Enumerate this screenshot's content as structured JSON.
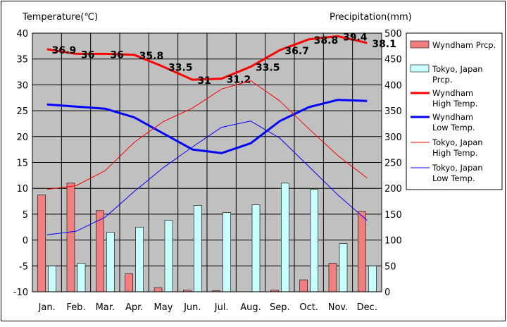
{
  "chart_data": {
    "type": "bar",
    "left_axis_title": "Temperature(℃)",
    "right_axis_title": "Precipitation(mm)",
    "categories": [
      "Jan.",
      "Feb.",
      "Mar.",
      "Apr.",
      "May",
      "Jun.",
      "Jul.",
      "Aug.",
      "Sep.",
      "Oct.",
      "Nov.",
      "Dec."
    ],
    "temperature_axis": {
      "min": -10,
      "max": 40,
      "ticks": [
        "40",
        "35",
        "30",
        "25",
        "20",
        "15",
        "10",
        "5",
        "0",
        "-5",
        "-10"
      ]
    },
    "precipitation_axis": {
      "min": 0,
      "max": 500,
      "ticks": [
        "500",
        "450",
        "400",
        "350",
        "300",
        "250",
        "200",
        "150",
        "100",
        "50",
        "0"
      ]
    },
    "grid": true,
    "plot_background": "#c0c0c0",
    "legend_position": "right",
    "series": [
      {
        "name": "Wyndham Prcp.",
        "kind": "bar",
        "axis": "precipitation",
        "color": "#f08080",
        "values": [
          187,
          210,
          157,
          35,
          8,
          3,
          2,
          0,
          3,
          23,
          55,
          155
        ]
      },
      {
        "name": "Tokyo, Japan Prcp.",
        "kind": "bar",
        "axis": "precipitation",
        "color": "#c8ffff",
        "values": [
          50,
          55,
          115,
          125,
          138,
          167,
          153,
          168,
          210,
          198,
          93,
          50
        ]
      },
      {
        "name": "Wyndham High Temp.",
        "kind": "line",
        "axis": "temperature",
        "color": "#ff0000",
        "width": 3,
        "values": [
          36.9,
          36.0,
          36.0,
          35.8,
          33.5,
          31.0,
          31.2,
          33.5,
          36.7,
          38.8,
          39.4,
          38.1
        ],
        "labels": [
          "36.9",
          "36",
          "36",
          "35.8",
          "33.5",
          "31",
          "31.2",
          "33.5",
          "36.7",
          "38.8",
          "39.4",
          "38.1"
        ]
      },
      {
        "name": "Wyndham Low Temp.",
        "kind": "line",
        "axis": "temperature",
        "color": "#0000ff",
        "width": 3,
        "values": [
          26.2,
          25.8,
          25.4,
          23.7,
          20.6,
          17.5,
          16.8,
          18.7,
          23.0,
          25.7,
          27.1,
          26.9
        ]
      },
      {
        "name": "Tokyo, Japan High Temp.",
        "kind": "line",
        "axis": "temperature",
        "color": "#ff0000",
        "width": 1,
        "values": [
          9.8,
          10.5,
          13.4,
          18.9,
          22.9,
          25.5,
          29.2,
          30.8,
          26.9,
          21.5,
          16.3,
          12.0
        ]
      },
      {
        "name": "Tokyo, Japan Low Temp.",
        "kind": "line",
        "axis": "temperature",
        "color": "#0000ff",
        "width": 1,
        "values": [
          1.0,
          1.7,
          4.4,
          9.4,
          14.0,
          18.0,
          21.8,
          23.0,
          19.7,
          14.2,
          8.7,
          3.8
        ]
      }
    ],
    "legend": [
      {
        "lines": [
          "Wyndham Prcp."
        ],
        "swatch": "bar",
        "color": "#f08080"
      },
      {
        "lines": [
          "Tokyo, Japan",
          "Prcp."
        ],
        "swatch": "bar",
        "color": "#c8ffff"
      },
      {
        "lines": [
          "Wyndham",
          "High Temp."
        ],
        "swatch": "line",
        "color": "#ff0000",
        "width": 3
      },
      {
        "lines": [
          "Wyndham",
          "Low Temp."
        ],
        "swatch": "line",
        "color": "#0000ff",
        "width": 3
      },
      {
        "lines": [
          "Tokyo, Japan",
          "High Temp."
        ],
        "swatch": "line",
        "color": "#ff0000",
        "width": 1
      },
      {
        "lines": [
          "Tokyo, Japan",
          "Low Temp."
        ],
        "swatch": "line",
        "color": "#0000ff",
        "width": 1
      }
    ]
  }
}
